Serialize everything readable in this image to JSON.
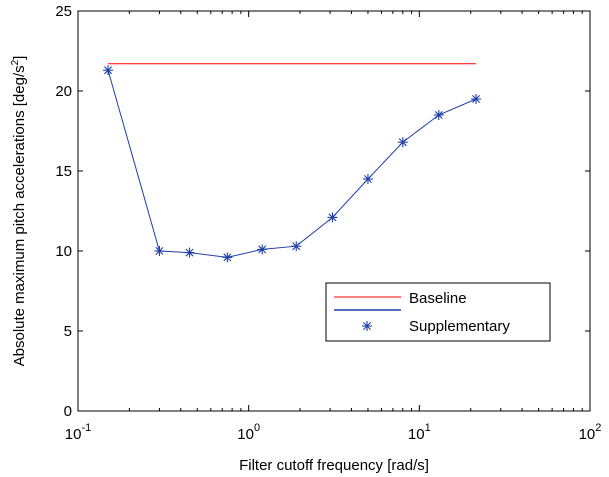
{
  "chart_data": {
    "type": "line",
    "xlabel": "Filter cutoff frequency [rad/s]",
    "ylabel": "Absolute maximum pitch accelerations [deg/s",
    "ylabel_superscript": "2",
    "ylabel_suffix": "]",
    "xscale": "log",
    "xlim": [
      0.1,
      100
    ],
    "ylim": [
      0,
      25
    ],
    "grid": false,
    "legend_position": "lower-right",
    "x_ticks": [
      {
        "base": "10",
        "exp": "-1",
        "value": 0.1
      },
      {
        "base": "10",
        "exp": "0",
        "value": 1
      },
      {
        "base": "10",
        "exp": "1",
        "value": 10
      },
      {
        "base": "10",
        "exp": "2",
        "value": 100
      }
    ],
    "y_ticks": [
      {
        "label": "0",
        "value": 0
      },
      {
        "label": "5",
        "value": 5
      },
      {
        "label": "10",
        "value": 10
      },
      {
        "label": "15",
        "value": 15
      },
      {
        "label": "20",
        "value": 20
      },
      {
        "label": "25",
        "value": 25
      }
    ],
    "series": [
      {
        "name": "Baseline",
        "color": "#ff0000",
        "marker": "none",
        "x": [
          0.15,
          21.5
        ],
        "y": [
          21.7,
          21.7
        ]
      },
      {
        "name": "Supplementary",
        "color": "#1f3fa8",
        "marker": "asterisk",
        "x": [
          0.15,
          0.3,
          0.45,
          0.75,
          1.2,
          1.9,
          3.1,
          5.0,
          8.0,
          13.0,
          21.5
        ],
        "y": [
          21.3,
          10.0,
          9.9,
          9.6,
          10.1,
          10.3,
          12.1,
          14.5,
          16.8,
          18.5,
          19.5
        ]
      }
    ]
  }
}
